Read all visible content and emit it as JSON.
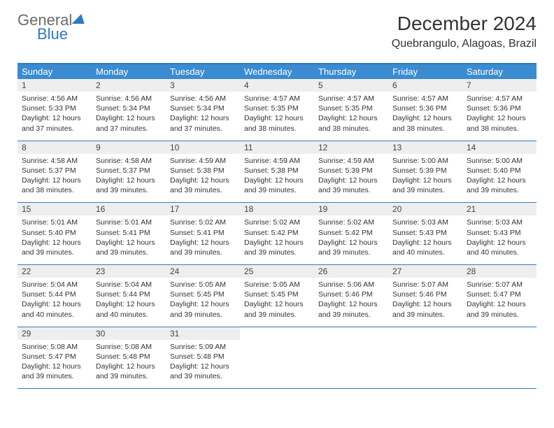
{
  "logo": {
    "line1": "General",
    "line2": "Blue"
  },
  "title": "December 2024",
  "location": "Quebrangulo, Alagoas, Brazil",
  "colors": {
    "header_bg": "#3a8bd0",
    "header_text": "#ffffff",
    "border": "#2f7bbf",
    "daynum_bg": "#eeeeee",
    "body_text": "#333333",
    "logo_gray": "#6a6a6a",
    "logo_blue": "#2f7bbf"
  },
  "weekdays": [
    "Sunday",
    "Monday",
    "Tuesday",
    "Wednesday",
    "Thursday",
    "Friday",
    "Saturday"
  ],
  "days": [
    {
      "n": "1",
      "sr": "4:56 AM",
      "ss": "5:33 PM",
      "dl": "12 hours and 37 minutes."
    },
    {
      "n": "2",
      "sr": "4:56 AM",
      "ss": "5:34 PM",
      "dl": "12 hours and 37 minutes."
    },
    {
      "n": "3",
      "sr": "4:56 AM",
      "ss": "5:34 PM",
      "dl": "12 hours and 37 minutes."
    },
    {
      "n": "4",
      "sr": "4:57 AM",
      "ss": "5:35 PM",
      "dl": "12 hours and 38 minutes."
    },
    {
      "n": "5",
      "sr": "4:57 AM",
      "ss": "5:35 PM",
      "dl": "12 hours and 38 minutes."
    },
    {
      "n": "6",
      "sr": "4:57 AM",
      "ss": "5:36 PM",
      "dl": "12 hours and 38 minutes."
    },
    {
      "n": "7",
      "sr": "4:57 AM",
      "ss": "5:36 PM",
      "dl": "12 hours and 38 minutes."
    },
    {
      "n": "8",
      "sr": "4:58 AM",
      "ss": "5:37 PM",
      "dl": "12 hours and 38 minutes."
    },
    {
      "n": "9",
      "sr": "4:58 AM",
      "ss": "5:37 PM",
      "dl": "12 hours and 39 minutes."
    },
    {
      "n": "10",
      "sr": "4:59 AM",
      "ss": "5:38 PM",
      "dl": "12 hours and 39 minutes."
    },
    {
      "n": "11",
      "sr": "4:59 AM",
      "ss": "5:38 PM",
      "dl": "12 hours and 39 minutes."
    },
    {
      "n": "12",
      "sr": "4:59 AM",
      "ss": "5:39 PM",
      "dl": "12 hours and 39 minutes."
    },
    {
      "n": "13",
      "sr": "5:00 AM",
      "ss": "5:39 PM",
      "dl": "12 hours and 39 minutes."
    },
    {
      "n": "14",
      "sr": "5:00 AM",
      "ss": "5:40 PM",
      "dl": "12 hours and 39 minutes."
    },
    {
      "n": "15",
      "sr": "5:01 AM",
      "ss": "5:40 PM",
      "dl": "12 hours and 39 minutes."
    },
    {
      "n": "16",
      "sr": "5:01 AM",
      "ss": "5:41 PM",
      "dl": "12 hours and 39 minutes."
    },
    {
      "n": "17",
      "sr": "5:02 AM",
      "ss": "5:41 PM",
      "dl": "12 hours and 39 minutes."
    },
    {
      "n": "18",
      "sr": "5:02 AM",
      "ss": "5:42 PM",
      "dl": "12 hours and 39 minutes."
    },
    {
      "n": "19",
      "sr": "5:02 AM",
      "ss": "5:42 PM",
      "dl": "12 hours and 39 minutes."
    },
    {
      "n": "20",
      "sr": "5:03 AM",
      "ss": "5:43 PM",
      "dl": "12 hours and 40 minutes."
    },
    {
      "n": "21",
      "sr": "5:03 AM",
      "ss": "5:43 PM",
      "dl": "12 hours and 40 minutes."
    },
    {
      "n": "22",
      "sr": "5:04 AM",
      "ss": "5:44 PM",
      "dl": "12 hours and 40 minutes."
    },
    {
      "n": "23",
      "sr": "5:04 AM",
      "ss": "5:44 PM",
      "dl": "12 hours and 40 minutes."
    },
    {
      "n": "24",
      "sr": "5:05 AM",
      "ss": "5:45 PM",
      "dl": "12 hours and 39 minutes."
    },
    {
      "n": "25",
      "sr": "5:05 AM",
      "ss": "5:45 PM",
      "dl": "12 hours and 39 minutes."
    },
    {
      "n": "26",
      "sr": "5:06 AM",
      "ss": "5:46 PM",
      "dl": "12 hours and 39 minutes."
    },
    {
      "n": "27",
      "sr": "5:07 AM",
      "ss": "5:46 PM",
      "dl": "12 hours and 39 minutes."
    },
    {
      "n": "28",
      "sr": "5:07 AM",
      "ss": "5:47 PM",
      "dl": "12 hours and 39 minutes."
    },
    {
      "n": "29",
      "sr": "5:08 AM",
      "ss": "5:47 PM",
      "dl": "12 hours and 39 minutes."
    },
    {
      "n": "30",
      "sr": "5:08 AM",
      "ss": "5:48 PM",
      "dl": "12 hours and 39 minutes."
    },
    {
      "n": "31",
      "sr": "5:09 AM",
      "ss": "5:48 PM",
      "dl": "12 hours and 39 minutes."
    }
  ],
  "labels": {
    "sunrise": "Sunrise:",
    "sunset": "Sunset:",
    "daylight": "Daylight:"
  },
  "layout": {
    "first_weekday_index": 0,
    "total_cells": 35
  }
}
